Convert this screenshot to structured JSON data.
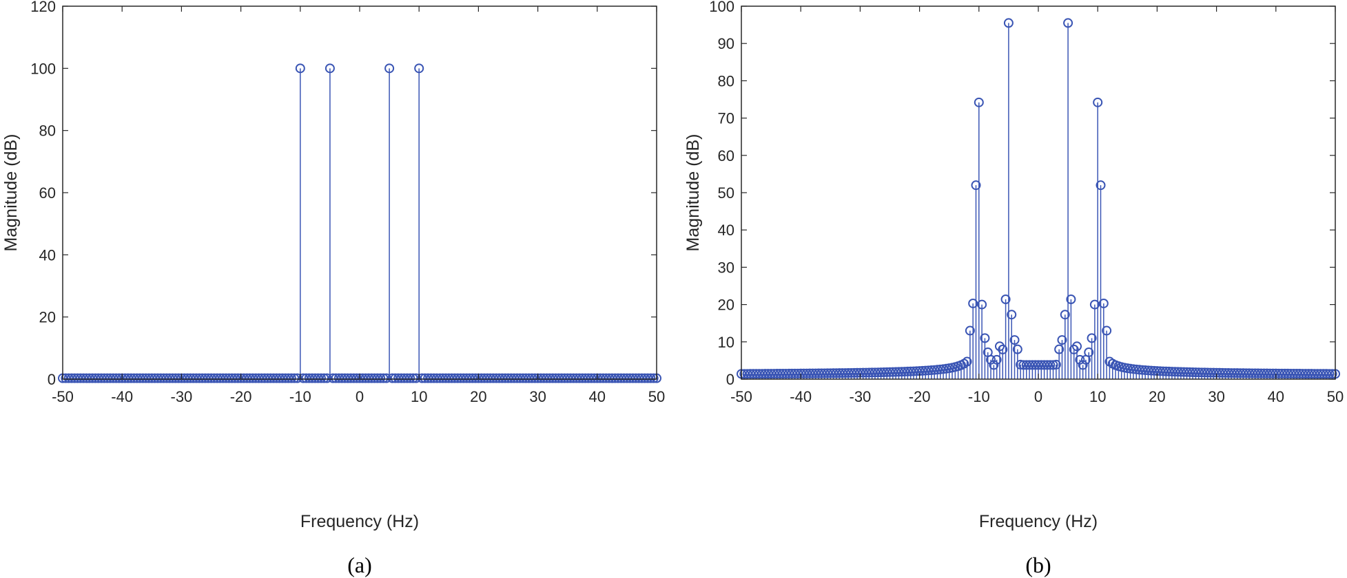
{
  "chart_data": [
    {
      "type": "stem",
      "panel_label": "(a)",
      "xlabel": "Frequency (Hz)",
      "ylabel": "Magnitude (dB)",
      "xlim": [
        -50,
        50
      ],
      "ylim": [
        0,
        120
      ],
      "xticks": [
        -50,
        -40,
        -30,
        -20,
        -10,
        0,
        10,
        20,
        30,
        40,
        50
      ],
      "yticks": [
        0,
        20,
        40,
        60,
        80,
        100,
        120
      ],
      "grid": false,
      "color": "#3a55b4",
      "baseline_step": 0.5,
      "baseline_value": 0.3,
      "peaks": [
        {
          "x": -10,
          "y": 100
        },
        {
          "x": -5,
          "y": 100
        },
        {
          "x": 5,
          "y": 100
        },
        {
          "x": 10,
          "y": 100
        }
      ]
    },
    {
      "type": "stem",
      "panel_label": "(b)",
      "xlabel": "Frequency (Hz)",
      "ylabel": "Magnitude (dB)",
      "xlim": [
        -50,
        50
      ],
      "ylim": [
        0,
        100
      ],
      "xticks": [
        -50,
        -40,
        -30,
        -20,
        -10,
        0,
        10,
        20,
        30,
        40,
        50
      ],
      "yticks": [
        0,
        10,
        20,
        30,
        40,
        50,
        60,
        70,
        80,
        90,
        100
      ],
      "grid": false,
      "color": "#3a55b4",
      "sample_step": 0.5,
      "floor_edge_value": 1.0,
      "dip_at_zero_value": 3.8,
      "peaks": [
        {
          "x": -11.5,
          "y": 13
        },
        {
          "x": -11,
          "y": 20.3
        },
        {
          "x": -10.5,
          "y": 52
        },
        {
          "x": -10,
          "y": 74.2
        },
        {
          "x": -9.5,
          "y": 20
        },
        {
          "x": -9,
          "y": 11
        },
        {
          "x": -8.5,
          "y": 7.2
        },
        {
          "x": -8,
          "y": 5.2
        },
        {
          "x": -7.5,
          "y": 3.8
        },
        {
          "x": -7,
          "y": 5.2
        },
        {
          "x": -6.5,
          "y": 8.8
        },
        {
          "x": -5.5,
          "y": 21.4
        },
        {
          "x": -5,
          "y": 95.5
        },
        {
          "x": -4.5,
          "y": 17.3
        },
        {
          "x": -4,
          "y": 10.5
        },
        {
          "x": -3.5,
          "y": 8
        },
        {
          "x": 3.5,
          "y": 8
        },
        {
          "x": 4,
          "y": 10.5
        },
        {
          "x": 4.5,
          "y": 17.3
        },
        {
          "x": 5,
          "y": 95.5
        },
        {
          "x": 5.5,
          "y": 21.4
        },
        {
          "x": 6.5,
          "y": 8.8
        },
        {
          "x": 7,
          "y": 5.2
        },
        {
          "x": 7.5,
          "y": 3.8
        },
        {
          "x": 8,
          "y": 5.2
        },
        {
          "x": 8.5,
          "y": 7.2
        },
        {
          "x": 9,
          "y": 11
        },
        {
          "x": 9.5,
          "y": 20
        },
        {
          "x": 10,
          "y": 74.2
        },
        {
          "x": 10.5,
          "y": 52
        },
        {
          "x": 11,
          "y": 20.3
        },
        {
          "x": 11.5,
          "y": 13
        }
      ]
    }
  ]
}
